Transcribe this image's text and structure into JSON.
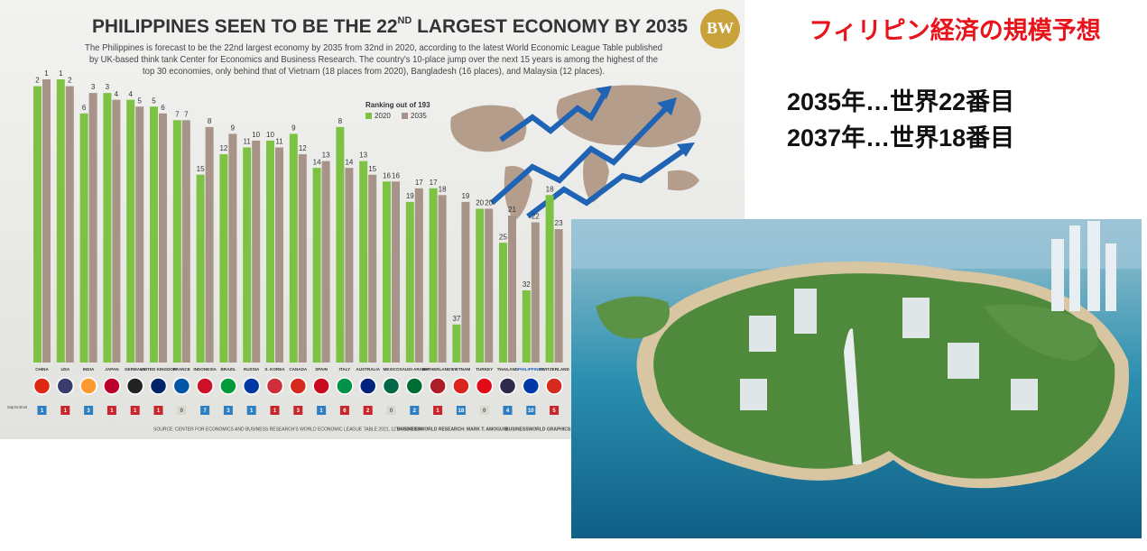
{
  "chart_data": {
    "type": "bar",
    "title_parts": [
      "PHILIPPINES SEEN TO BE THE 22",
      "ND",
      " LARGEST ECONOMY BY 2035"
    ],
    "subtitle_lines": [
      "The Philippines is forecast to be the 22nd largest economy by 2035 from 32nd in 2020, according to the latest World Economic League Table published",
      "by UK-based think tank Center for Economics and Business Research. The country's 10-place jump over the next 15 years is among the highest of the",
      "top 30 economies, only behind that of Vietnam (18 places from 2020), Bangladesh (16 places), and Malaysia (12 places)."
    ],
    "legend_title": "Ranking out of 193",
    "categories": [
      "CHINA",
      "USA",
      "INDIA",
      "JAPAN",
      "GERMANY",
      "UNITED KINGDOM",
      "FRANCE",
      "INDONESIA",
      "BRAZIL",
      "RUSSIA",
      "S. KOREA",
      "CANADA",
      "SPAIN",
      "ITALY",
      "AUSTRALIA",
      "MEXICO",
      "SAUDI ARABIA",
      "NETHERLANDS",
      "VIETNAM",
      "TURKEY",
      "THAILAND",
      "PHILIPPINES",
      "SWITZERLAND"
    ],
    "series": [
      {
        "name": "2020",
        "color": "#7dc242",
        "values": [
          2,
          1,
          6,
          3,
          4,
          5,
          7,
          15,
          12,
          11,
          10,
          9,
          14,
          8,
          13,
          16,
          19,
          17,
          37,
          20,
          25,
          32,
          18
        ]
      },
      {
        "name": "2035",
        "color": "#a89388",
        "values": [
          1,
          2,
          3,
          4,
          5,
          6,
          7,
          8,
          9,
          10,
          11,
          12,
          13,
          14,
          15,
          16,
          17,
          18,
          19,
          20,
          21,
          22,
          23
        ]
      }
    ],
    "change_label": "Change from 2020 rank",
    "change": [
      1,
      1,
      3,
      1,
      1,
      1,
      0,
      7,
      3,
      1,
      1,
      3,
      1,
      6,
      2,
      0,
      2,
      1,
      18,
      0,
      4,
      10,
      5
    ],
    "change_direction": [
      "up",
      "down",
      "up",
      "down",
      "down",
      "down",
      "none",
      "up",
      "up",
      "up",
      "down",
      "down",
      "up",
      "down",
      "down",
      "none",
      "up",
      "down",
      "up",
      "none",
      "up",
      "up",
      "down"
    ],
    "change_colors": {
      "up": "#2d7fc1",
      "down": "#c8252c",
      "none": "#d8d8cc"
    },
    "highlight": "PHILIPPINES",
    "source": "SOURCE: CENTER FOR ECONOMICS AND BUSINESS RESEARCH'S WORLD ECONOMIC LEAGUE TABLE 2021, 12TH EDITION",
    "research": "BUSINESSWORLD RESEARCH: MARK T. AMOGUIS",
    "graphics": "BUSINESSWORLD GRAPHICS:",
    "logo": "BW"
  },
  "notes": {
    "heading": "フィリピン経済の規模予想",
    "lines": [
      "2035年…世界22番目",
      "2037年…世界18番目"
    ]
  }
}
